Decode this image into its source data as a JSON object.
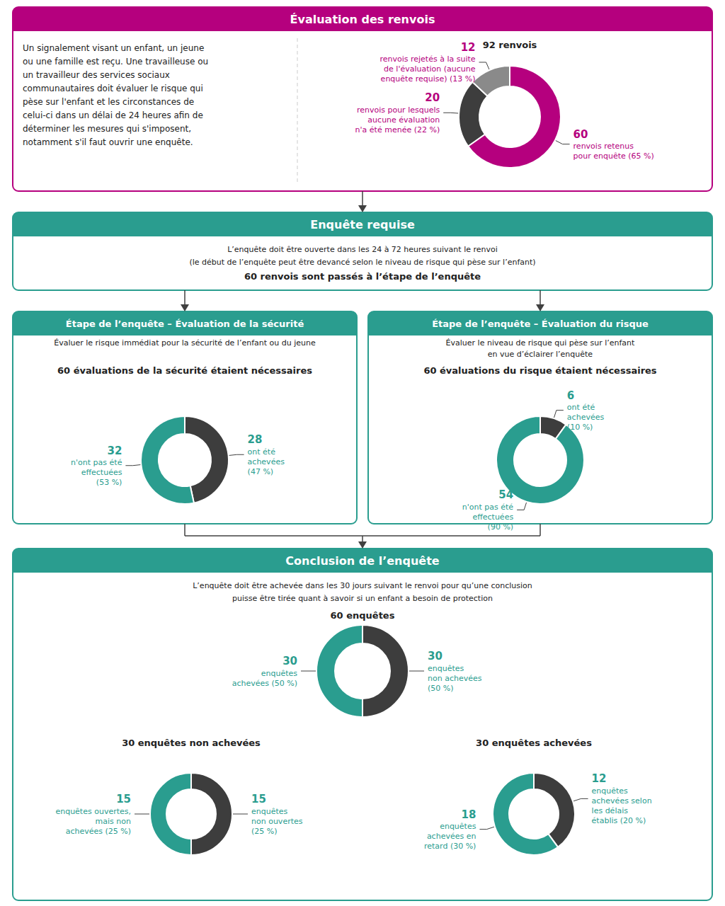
{
  "chart_data": [
    {
      "type": "pie",
      "title": "Évaluation des renvois",
      "color": "#b5007e",
      "annotations": [
        "Un signalement visant un enfant, un jeune\nou une famille est reçu. Une travailleuse ou\nun travailleur des services sociaux\ncommunautaires doit évaluer le risque qui\npèse sur l'enfant et les circonstances de\ncelui-ci dans un délai de 24 heures afin de\ndéterminer les mesures qui s'imposent,\nnotamment s'il faut ouvrir une enquête."
      ],
      "subtitle": "92 renvois",
      "categories": [
        "renvois retenus\npour enquête (65 %)",
        "renvois pour lesquels\naucune évaluation\nn'a été menée (22 %)",
        "renvois rejetés à la suite\nde l'évaluation (aucune\nenquête requise) (13 %)"
      ],
      "values": [
        60,
        20,
        12
      ],
      "colors": [
        "#b5007e",
        "#3d3d3d",
        "#8a8a8a"
      ],
      "data_labels": true
    },
    {
      "type": "text",
      "title": "Enquête requise",
      "color": "#2a9d8f",
      "annotations": [
        "L’enquête doit être ouverte dans les 24 à 72 heures suivant le renvoi",
        "(le début de l’enquête peut être devancé selon le niveau de risque qui pèse sur l’enfant)"
      ],
      "subtitle": "60 renvois sont passés à l’étape de l’enquête"
    },
    {
      "type": "pie",
      "title": "Étape de l’enquête – Évaluation de la sécurité",
      "color": "#2a9d8f",
      "annotations": [
        "Évaluer le risque immédiat pour la sécurité de l’enfant ou du jeune"
      ],
      "subtitle": "60 évaluations de la sécurité étaient nécessaires",
      "categories": [
        "ont été\nachevées\n(47 %)",
        "n'ont pas été\neffectuées\n(53 %)"
      ],
      "values": [
        28,
        32
      ],
      "colors": [
        "#3d3d3d",
        "#2a9d8f"
      ],
      "data_labels": true
    },
    {
      "type": "pie",
      "title": "Étape de l’enquête – Évaluation du risque",
      "color": "#2a9d8f",
      "annotations": [
        "Évaluer le niveau de risque qui pèse sur l’enfant\nen vue d’éclairer l’enquête"
      ],
      "subtitle": "60 évaluations du risque étaient nécessaires",
      "categories": [
        "ont été\nachevées\n(10 %)",
        "n'ont pas été\neffectuées\n(90 %)"
      ],
      "values": [
        6,
        54
      ],
      "colors": [
        "#3d3d3d",
        "#2a9d8f"
      ],
      "data_labels": true
    },
    {
      "type": "pie",
      "title": "Conclusion de l’enquête",
      "color": "#2a9d8f",
      "annotations": [
        "L’enquête doit être achevée dans les 30 jours suivant le renvoi pour qu’une conclusion",
        "puisse être tirée quant à savoir si un enfant a besoin de protection"
      ],
      "subtitle": "60 enquêtes",
      "categories": [
        "enquêtes\nnon achevées\n(50 %)",
        "enquêtes\nachevées (50 %)"
      ],
      "values": [
        30,
        30
      ],
      "colors": [
        "#3d3d3d",
        "#2a9d8f"
      ],
      "data_labels": true
    },
    {
      "type": "pie",
      "color": "#2a9d8f",
      "subtitle": "30 enquêtes non achevées",
      "categories": [
        "enquêtes\nnon ouvertes\n(25 %)",
        "enquêtes ouvertes,\nmais non\nachevées (25 %)"
      ],
      "values": [
        15,
        15
      ],
      "colors": [
        "#3d3d3d",
        "#2a9d8f"
      ],
      "data_labels": true
    },
    {
      "type": "pie",
      "color": "#2a9d8f",
      "subtitle": "30 enquêtes achevées",
      "categories": [
        "enquêtes\nachevées selon\nles délais\nétablis (20 %)",
        "enquêtes\nachevées en\nretard (30 %)"
      ],
      "values": [
        12,
        18
      ],
      "colors": [
        "#3d3d3d",
        "#2a9d8f"
      ],
      "data_labels": true
    }
  ]
}
